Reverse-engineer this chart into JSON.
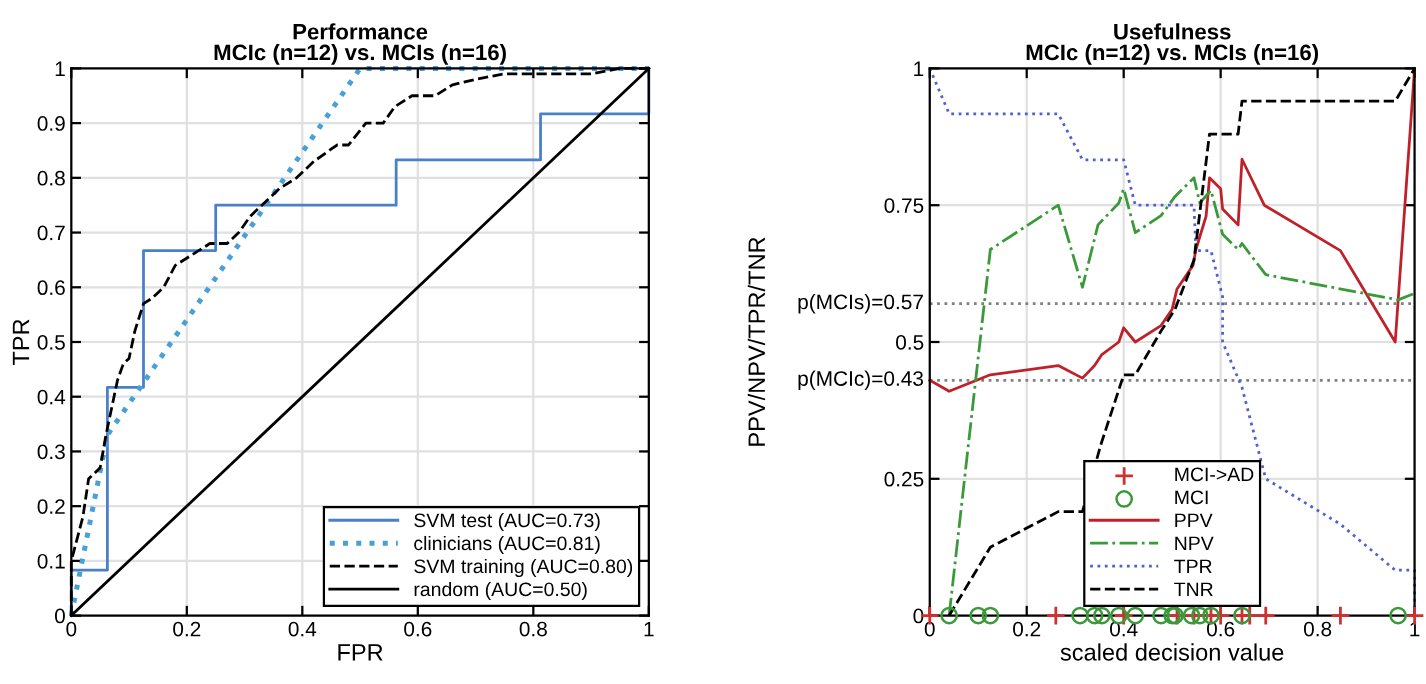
{
  "chart_data": [
    {
      "type": "line",
      "title": "Performance\nMCIc (n=12) vs. MCIs (n=16)",
      "xlabel": "FPR",
      "ylabel": "TPR",
      "xlim": [
        0,
        1
      ],
      "ylim": [
        0,
        1
      ],
      "xticks": [
        0,
        0.2,
        0.4,
        0.6,
        0.8,
        1
      ],
      "yticks": [
        0,
        0.1,
        0.2,
        0.3,
        0.4,
        0.5,
        0.6,
        0.7,
        0.8,
        0.9,
        1
      ],
      "grid": true,
      "legend": "bottom right",
      "series": [
        {
          "name": "SVM test (AUC=0.73)",
          "color": "#4a80c8",
          "line_style": "solid",
          "x": [
            0,
            0,
            0.0625,
            0.0625,
            0.125,
            0.125,
            0.25,
            0.25,
            0.5625,
            0.5625,
            0.8125,
            0.8125,
            1,
            1
          ],
          "values": [
            0,
            0.083,
            0.083,
            0.417,
            0.417,
            0.667,
            0.667,
            0.75,
            0.75,
            0.833,
            0.833,
            0.917,
            0.917,
            1
          ]
        },
        {
          "name": "clinicians (AUC=0.81)",
          "color": "#48a0d8",
          "line_style": "dotted",
          "x": [
            0,
            0.0625,
            0.5,
            1
          ],
          "values": [
            0,
            0.33,
            1,
            1
          ]
        },
        {
          "name": "SVM training (AUC=0.80)",
          "color": "#000000",
          "line_style": "dashed",
          "x": [
            0,
            0,
            0.02,
            0.03,
            0.05,
            0.06,
            0.08,
            0.09,
            0.1,
            0.11,
            0.125,
            0.14,
            0.16,
            0.18,
            0.21,
            0.24,
            0.27,
            0.29,
            0.31,
            0.33,
            0.36,
            0.39,
            0.42,
            0.46,
            0.48,
            0.51,
            0.54,
            0.56,
            0.59,
            0.63,
            0.66,
            0.7,
            0.75,
            0.9,
            0.95,
            1
          ],
          "values": [
            0,
            0.1,
            0.18,
            0.25,
            0.27,
            0.33,
            0.43,
            0.46,
            0.47,
            0.52,
            0.57,
            0.58,
            0.6,
            0.64,
            0.66,
            0.68,
            0.68,
            0.7,
            0.73,
            0.75,
            0.78,
            0.8,
            0.83,
            0.86,
            0.86,
            0.9,
            0.9,
            0.93,
            0.95,
            0.95,
            0.97,
            0.98,
            0.99,
            0.99,
            1,
            1
          ]
        },
        {
          "name": "random (AUC=0.50)",
          "color": "#000000",
          "line_style": "solid",
          "x": [
            0,
            1
          ],
          "values": [
            0,
            1
          ]
        }
      ]
    },
    {
      "type": "line",
      "title": "Usefulness\nMCIc (n=12) vs. MCIs (n=16)",
      "xlabel": "scaled decision value",
      "ylabel": "PPV/NPV/TPR/TNR",
      "xlim": [
        0,
        1
      ],
      "ylim": [
        0,
        1
      ],
      "xticks": [
        0,
        0.2,
        0.4,
        0.6,
        0.8,
        1
      ],
      "yticks": [
        0,
        0.25,
        0.5,
        0.75,
        1
      ],
      "grid": true,
      "legend": "bottom",
      "ref_lines": [
        {
          "axis": "y",
          "value": 0.43,
          "label": "p(MCIc)=0.43",
          "color": "#808080",
          "line_style": "dotted"
        },
        {
          "axis": "y",
          "value": 0.57,
          "label": "p(MCIs)=0.57",
          "color": "#808080",
          "line_style": "dotted"
        }
      ],
      "series": [
        {
          "name": "MCI->AD",
          "type": "scatter",
          "marker": "cross",
          "color": "#d03030",
          "x": [
            0,
            0.26,
            0.4,
            0.51,
            0.545,
            0.58,
            0.6,
            0.644,
            0.66,
            0.693,
            0.847,
            1
          ],
          "values": [
            0,
            0,
            0,
            0,
            0,
            0,
            0,
            0,
            0,
            0,
            0,
            0
          ]
        },
        {
          "name": "MCI",
          "type": "scatter",
          "marker": "circle",
          "color": "#3a9a3a",
          "x": [
            0.04,
            0.1,
            0.125,
            0.31,
            0.34,
            0.355,
            0.39,
            0.424,
            0.477,
            0.5,
            0.506,
            0.54,
            0.557,
            0.58,
            0.644,
            0.966
          ],
          "values": [
            0,
            0,
            0,
            0,
            0,
            0,
            0,
            0,
            0,
            0,
            0,
            0,
            0,
            0,
            0,
            0
          ]
        },
        {
          "name": "PPV",
          "type": "line",
          "color": "#c0202a",
          "line_style": "solid",
          "x": [
            0,
            0.04,
            0.125,
            0.265,
            0.315,
            0.34,
            0.355,
            0.39,
            0.4,
            0.424,
            0.477,
            0.5,
            0.51,
            0.543,
            0.549,
            0.57,
            0.577,
            0.6,
            0.604,
            0.636,
            0.644,
            0.69,
            0.847,
            0.96,
            1
          ],
          "values": [
            0.43,
            0.41,
            0.44,
            0.457,
            0.434,
            0.457,
            0.477,
            0.5,
            0.526,
            0.5,
            0.53,
            0.56,
            0.597,
            0.64,
            0.669,
            0.73,
            0.8,
            0.78,
            0.743,
            0.714,
            0.834,
            0.75,
            0.667,
            0.5,
            1
          ]
        },
        {
          "name": "NPV",
          "type": "line",
          "color": "#3a9a3a",
          "line_style": "dashdot",
          "x": [
            0.04,
            0.125,
            0.265,
            0.315,
            0.347,
            0.39,
            0.4,
            0.424,
            0.477,
            0.506,
            0.545,
            0.557,
            0.58,
            0.604,
            0.636,
            0.644,
            0.693,
            0.966,
            1
          ],
          "values": [
            0,
            0.669,
            0.75,
            0.6,
            0.714,
            0.754,
            0.78,
            0.7,
            0.731,
            0.766,
            0.8,
            0.754,
            0.777,
            0.697,
            0.669,
            0.68,
            0.623,
            0.577,
            0.589
          ]
        },
        {
          "name": "TPR",
          "type": "line",
          "color": "#5060d0",
          "line_style": "dotted",
          "x": [
            0,
            0.04,
            0.265,
            0.315,
            0.4,
            0.424,
            0.545,
            0.549,
            0.58,
            0.604,
            0.604,
            0.644,
            0.693,
            0.847,
            0.96,
            1,
            1
          ],
          "values": [
            1,
            0.917,
            0.917,
            0.833,
            0.833,
            0.75,
            0.75,
            0.667,
            0.667,
            0.583,
            0.5,
            0.417,
            0.25,
            0.167,
            0.083,
            0.083,
            0
          ]
        },
        {
          "name": "TNR",
          "type": "line",
          "color": "#000000",
          "line_style": "dashed",
          "x": [
            0.04,
            0.125,
            0.265,
            0.315,
            0.352,
            0.4,
            0.424,
            0.477,
            0.506,
            0.545,
            0.577,
            0.636,
            0.644,
            0.96,
            1
          ],
          "values": [
            0,
            0.125,
            0.19,
            0.19,
            0.31,
            0.44,
            0.44,
            0.52,
            0.56,
            0.65,
            0.88,
            0.88,
            0.94,
            0.94,
            1
          ]
        }
      ]
    }
  ]
}
